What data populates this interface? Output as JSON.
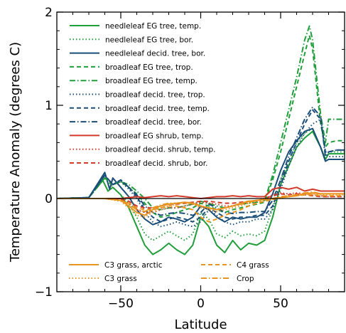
{
  "chart_data": {
    "type": "line",
    "title": "",
    "xlabel": "Latitude",
    "ylabel": "Temperature Anomaly (degrees C)",
    "xlim": [
      -90,
      90
    ],
    "ylim": [
      -1,
      2
    ],
    "xticks": [
      -50,
      0,
      50
    ],
    "yticks": [
      -1,
      0,
      1,
      2
    ],
    "x_tick_labels": [
      "−50",
      "0",
      "50"
    ],
    "y_tick_labels": [
      "−1",
      "0",
      "1",
      "2"
    ],
    "grid": false,
    "zero_line": true,
    "legend_placement": "top and bottom-left inside plot",
    "series": [
      {
        "name": "needleleaf EG tree, temp.",
        "color": "#1f9e3a",
        "dash": "solid",
        "x": [
          -90,
          -70,
          -62,
          -58,
          -55,
          -50,
          -45,
          -40,
          -35,
          -30,
          -25,
          -20,
          -15,
          -10,
          -5,
          0,
          5,
          10,
          15,
          20,
          25,
          30,
          35,
          40,
          45,
          50,
          55,
          60,
          65,
          70,
          75,
          78,
          80,
          85,
          90
        ],
        "y": [
          0,
          0.01,
          0.22,
          0.08,
          0.12,
          0.04,
          -0.1,
          -0.3,
          -0.5,
          -0.6,
          -0.55,
          -0.48,
          -0.55,
          -0.6,
          -0.5,
          -0.2,
          -0.3,
          -0.5,
          -0.58,
          -0.45,
          -0.55,
          -0.48,
          -0.5,
          -0.45,
          -0.2,
          0.15,
          0.35,
          0.55,
          0.65,
          0.72,
          0.55,
          0.42,
          0.48,
          0.48,
          0.48
        ]
      },
      {
        "name": "needleleaf EG tree, bor.",
        "color": "#1f9e3a",
        "dash": "dot",
        "x": [
          -90,
          -70,
          -60,
          -55,
          -50,
          -45,
          -40,
          -35,
          -30,
          -25,
          -20,
          -15,
          -10,
          -5,
          0,
          5,
          10,
          15,
          20,
          25,
          30,
          35,
          40,
          45,
          50,
          55,
          60,
          65,
          70,
          75,
          78,
          80,
          85,
          90
        ],
        "y": [
          0,
          0.01,
          0.22,
          0.12,
          0.04,
          -0.05,
          -0.2,
          -0.38,
          -0.45,
          -0.4,
          -0.35,
          -0.4,
          -0.45,
          -0.38,
          -0.15,
          -0.22,
          -0.38,
          -0.42,
          -0.35,
          -0.4,
          -0.38,
          -0.4,
          -0.35,
          -0.1,
          0.2,
          0.4,
          0.6,
          0.7,
          0.75,
          0.55,
          0.42,
          0.5,
          0.5,
          0.5
        ]
      },
      {
        "name": "needleleaf decid. tree, bor.",
        "color": "#1b4e78",
        "dash": "solid",
        "x": [
          -90,
          -70,
          -60,
          -57,
          -55,
          -50,
          -45,
          -40,
          -35,
          -30,
          -25,
          -20,
          -15,
          -10,
          -5,
          0,
          5,
          10,
          15,
          20,
          25,
          30,
          35,
          40,
          45,
          50,
          55,
          60,
          65,
          70,
          75,
          78,
          80,
          85,
          90
        ],
        "y": [
          0,
          0.01,
          0.28,
          0.1,
          0.22,
          0.12,
          0.02,
          -0.12,
          -0.22,
          -0.28,
          -0.25,
          -0.2,
          -0.22,
          -0.25,
          -0.2,
          -0.08,
          -0.12,
          -0.2,
          -0.25,
          -0.2,
          -0.22,
          -0.2,
          -0.2,
          -0.15,
          0.05,
          0.3,
          0.5,
          0.62,
          0.72,
          0.75,
          0.55,
          0.4,
          0.42,
          0.42,
          0.42
        ]
      },
      {
        "name": "broadleaf EG tree, trop.",
        "color": "#1f9e3a",
        "dash": "dash",
        "x": [
          -90,
          -70,
          -60,
          -55,
          -50,
          -45,
          -40,
          -35,
          -30,
          -25,
          -20,
          -15,
          -10,
          -5,
          0,
          5,
          10,
          15,
          20,
          25,
          30,
          35,
          40,
          45,
          50,
          55,
          60,
          65,
          68,
          70,
          75,
          78,
          80,
          85,
          90
        ],
        "y": [
          0,
          0.01,
          0.22,
          0.15,
          0.18,
          0.12,
          0.05,
          -0.05,
          -0.15,
          -0.2,
          -0.18,
          -0.15,
          -0.12,
          -0.1,
          -0.05,
          -0.08,
          -0.12,
          -0.15,
          -0.12,
          -0.1,
          -0.08,
          -0.06,
          -0.04,
          0.2,
          0.5,
          0.85,
          1.2,
          1.55,
          1.75,
          1.6,
          0.8,
          0.55,
          0.6,
          0.62,
          0.62
        ]
      },
      {
        "name": "broadleaf EG tree, temp.",
        "color": "#1f9e3a",
        "dash": "dashdot",
        "x": [
          -90,
          -70,
          -60,
          -55,
          -50,
          -45,
          -40,
          -35,
          -30,
          -25,
          -20,
          -15,
          -10,
          -5,
          0,
          5,
          10,
          15,
          20,
          25,
          30,
          35,
          40,
          45,
          50,
          55,
          60,
          65,
          68,
          70,
          75,
          78,
          80,
          85,
          90
        ],
        "y": [
          0,
          0.01,
          0.22,
          0.15,
          0.18,
          0.15,
          0.08,
          0,
          -0.1,
          -0.12,
          -0.1,
          -0.1,
          -0.08,
          -0.06,
          -0.03,
          -0.05,
          -0.08,
          -0.1,
          -0.08,
          -0.06,
          -0.05,
          -0.04,
          -0.02,
          0.25,
          0.6,
          0.95,
          1.3,
          1.7,
          1.85,
          1.7,
          0.9,
          0.6,
          0.85,
          0.85,
          0.85
        ]
      },
      {
        "name": "broadleaf decid. tree, trop.",
        "color": "#1b4e78",
        "dash": "dot",
        "x": [
          -90,
          -70,
          -60,
          -55,
          -50,
          -45,
          -40,
          -35,
          -30,
          -25,
          -20,
          -15,
          -10,
          -5,
          0,
          5,
          10,
          15,
          20,
          25,
          30,
          35,
          40,
          45,
          50,
          55,
          60,
          65,
          70,
          75,
          78,
          80,
          85,
          90
        ],
        "y": [
          0,
          0.01,
          0.25,
          0.15,
          0.18,
          0.1,
          0,
          -0.15,
          -0.25,
          -0.3,
          -0.28,
          -0.25,
          -0.28,
          -0.3,
          -0.25,
          -0.12,
          -0.18,
          -0.25,
          -0.28,
          -0.25,
          -0.25,
          -0.22,
          -0.22,
          -0.12,
          0.1,
          0.35,
          0.55,
          0.7,
          0.8,
          0.85,
          0.5,
          0.45,
          0.45,
          0.45
        ]
      },
      {
        "name": "broadleaf decid. tree, temp.",
        "color": "#1b4e78",
        "dash": "dash",
        "x": [
          -90,
          -70,
          -60,
          -55,
          -50,
          -45,
          -40,
          -35,
          -30,
          -25,
          -20,
          -15,
          -10,
          -5,
          0,
          5,
          10,
          15,
          20,
          25,
          30,
          35,
          40,
          45,
          50,
          55,
          60,
          65,
          70,
          75,
          78,
          80,
          85,
          90
        ],
        "y": [
          0,
          0.01,
          0.25,
          0.15,
          0.2,
          0.12,
          0.02,
          -0.12,
          -0.2,
          -0.25,
          -0.22,
          -0.2,
          -0.22,
          -0.25,
          -0.2,
          -0.1,
          -0.15,
          -0.2,
          -0.22,
          -0.2,
          -0.2,
          -0.18,
          -0.18,
          -0.08,
          0.15,
          0.4,
          0.6,
          0.8,
          0.95,
          0.85,
          0.5,
          0.5,
          0.52,
          0.52
        ]
      },
      {
        "name": "broadleaf decid.  tree, bor.",
        "color": "#1b4e78",
        "dash": "dashdot",
        "x": [
          -90,
          -70,
          -60,
          -55,
          -50,
          -45,
          -40,
          -35,
          -30,
          -25,
          -20,
          -15,
          -10,
          -5,
          0,
          5,
          10,
          15,
          20,
          25,
          30,
          35,
          40,
          45,
          50,
          55,
          60,
          65,
          70,
          75,
          78,
          80,
          85,
          90
        ],
        "y": [
          0,
          0.01,
          0.25,
          0.15,
          0.2,
          0.12,
          0.04,
          -0.08,
          -0.15,
          -0.18,
          -0.16,
          -0.15,
          -0.16,
          -0.18,
          -0.15,
          -0.06,
          -0.1,
          -0.15,
          -0.16,
          -0.15,
          -0.15,
          -0.14,
          -0.14,
          -0.02,
          0.2,
          0.45,
          0.65,
          0.85,
          0.98,
          0.88,
          0.45,
          0.5,
          0.52,
          0.52
        ]
      },
      {
        "name": "broadleaf EG shrub, temp.",
        "color": "#d23a2a",
        "dash": "solid",
        "x": [
          -90,
          -70,
          -60,
          -50,
          -45,
          -40,
          -35,
          -30,
          -25,
          -20,
          -15,
          -10,
          -5,
          0,
          5,
          10,
          15,
          20,
          25,
          30,
          35,
          40,
          45,
          50,
          55,
          60,
          65,
          70,
          75,
          80,
          85,
          90
        ],
        "y": [
          0,
          0,
          0,
          0,
          0.01,
          0.02,
          0.01,
          0.02,
          0.03,
          0.02,
          0.03,
          0.02,
          0.01,
          0,
          0.01,
          0.02,
          0.02,
          0.03,
          0.02,
          0.03,
          0.02,
          0.02,
          0.1,
          0.12,
          0.1,
          0.12,
          0.08,
          0.1,
          0.08,
          0.08,
          0.08,
          0.08
        ]
      },
      {
        "name": "broadleaf decid.  shrub, temp.",
        "color": "#d23a2a",
        "dash": "dot",
        "x": [
          -90,
          -70,
          -60,
          -50,
          -45,
          -40,
          -35,
          -30,
          -25,
          -20,
          -15,
          -10,
          -5,
          0,
          5,
          10,
          15,
          20,
          25,
          30,
          35,
          40,
          45,
          50,
          55,
          60,
          65,
          70,
          75,
          80,
          85,
          90
        ],
        "y": [
          0,
          0,
          0,
          -0.02,
          -0.05,
          -0.12,
          -0.15,
          -0.15,
          -0.12,
          -0.1,
          -0.1,
          -0.08,
          -0.06,
          -0.04,
          -0.05,
          -0.06,
          -0.08,
          -0.08,
          -0.06,
          -0.04,
          -0.03,
          0,
          0.04,
          0.06,
          0.05,
          0.06,
          0.05,
          0.04,
          0.03,
          0.02,
          0.02,
          0.02
        ]
      },
      {
        "name": "broadleaf decid.  shrub, bor.",
        "color": "#d23a2a",
        "dash": "dash",
        "x": [
          -90,
          -70,
          -60,
          -50,
          -45,
          -40,
          -35,
          -30,
          -25,
          -20,
          -15,
          -10,
          -5,
          0,
          5,
          10,
          15,
          20,
          25,
          30,
          35,
          40,
          45,
          50,
          55,
          60,
          65,
          70,
          75,
          80,
          85,
          90
        ],
        "y": [
          0,
          0,
          0,
          -0.01,
          -0.03,
          -0.08,
          -0.1,
          -0.1,
          -0.08,
          -0.06,
          -0.06,
          -0.05,
          -0.04,
          -0.03,
          -0.03,
          -0.04,
          -0.05,
          -0.05,
          -0.04,
          -0.03,
          -0.02,
          0,
          0.03,
          0.05,
          0.04,
          0.05,
          0.04,
          0.03,
          0.02,
          0.02,
          0.02,
          0.02
        ]
      },
      {
        "name": "C3 grass, arctic",
        "color": "#e8941e",
        "dash": "solid",
        "x": [
          -90,
          -70,
          -60,
          -50,
          -45,
          -40,
          -35,
          -30,
          -25,
          -20,
          -15,
          -10,
          -5,
          0,
          5,
          10,
          15,
          20,
          25,
          30,
          35,
          40,
          45,
          50,
          55,
          60,
          65,
          70,
          75,
          80,
          85,
          90
        ],
        "y": [
          0,
          0,
          0,
          -0.02,
          -0.08,
          -0.15,
          -0.18,
          -0.12,
          -0.08,
          -0.06,
          -0.05,
          -0.04,
          -0.05,
          -0.08,
          -0.1,
          -0.12,
          -0.1,
          -0.08,
          -0.05,
          -0.03,
          -0.02,
          -0.01,
          0,
          0.01,
          0.02,
          0.03,
          0.05,
          0.06,
          0.05,
          0.05,
          0.05,
          0.05
        ]
      },
      {
        "name": "C3 grass",
        "color": "#e8941e",
        "dash": "dot",
        "x": [
          -90,
          -70,
          -60,
          -50,
          -45,
          -40,
          -35,
          -30,
          -25,
          -20,
          -15,
          -10,
          -5,
          0,
          5,
          10,
          15,
          20,
          25,
          30,
          35,
          40,
          45,
          50,
          55,
          60,
          65,
          70,
          75,
          80,
          85,
          90
        ],
        "y": [
          0,
          0,
          0,
          -0.03,
          -0.1,
          -0.18,
          -0.2,
          -0.15,
          -0.1,
          -0.08,
          -0.06,
          -0.05,
          -0.06,
          -0.1,
          -0.12,
          -0.14,
          -0.12,
          -0.1,
          -0.08,
          -0.05,
          -0.03,
          -0.02,
          -0.01,
          0.01,
          0.02,
          0.03,
          0.04,
          0.05,
          0.04,
          0.04,
          0.04,
          0.04
        ]
      },
      {
        "name": "C4 grass",
        "color": "#e8941e",
        "dash": "dash",
        "x": [
          -90,
          -70,
          -60,
          -50,
          -45,
          -40,
          -35,
          -30,
          -25,
          -20,
          -15,
          -10,
          -5,
          0,
          5,
          10,
          15,
          20,
          25,
          30,
          35,
          40,
          45,
          50,
          55,
          60,
          65,
          70,
          75,
          80,
          85,
          90
        ],
        "y": [
          0,
          0,
          0,
          -0.02,
          -0.05,
          -0.1,
          -0.12,
          -0.12,
          -0.1,
          -0.08,
          -0.08,
          -0.1,
          -0.12,
          -0.2,
          -0.25,
          -0.22,
          -0.18,
          -0.15,
          -0.12,
          -0.08,
          -0.05,
          -0.03,
          -0.01,
          0.01,
          0.02,
          0.03,
          0.04,
          0.04,
          0.03,
          0.03,
          0.03,
          0.03
        ]
      },
      {
        "name": "Crop",
        "color": "#e8941e",
        "dash": "dashdot",
        "x": [
          -90,
          -70,
          -60,
          -50,
          -45,
          -40,
          -35,
          -30,
          -25,
          -20,
          -15,
          -10,
          -5,
          0,
          5,
          10,
          15,
          20,
          25,
          30,
          35,
          40,
          45,
          50,
          55,
          60,
          65,
          70,
          75,
          80,
          85,
          90
        ],
        "y": [
          0,
          0,
          0,
          -0.02,
          -0.06,
          -0.12,
          -0.14,
          -0.1,
          -0.07,
          -0.05,
          -0.05,
          -0.04,
          -0.05,
          -0.08,
          -0.1,
          -0.12,
          -0.1,
          -0.08,
          -0.06,
          -0.04,
          -0.02,
          -0.01,
          0,
          0.02,
          0.03,
          0.04,
          0.06,
          0.07,
          0.05,
          0.05,
          0.05,
          0.05
        ]
      }
    ]
  }
}
